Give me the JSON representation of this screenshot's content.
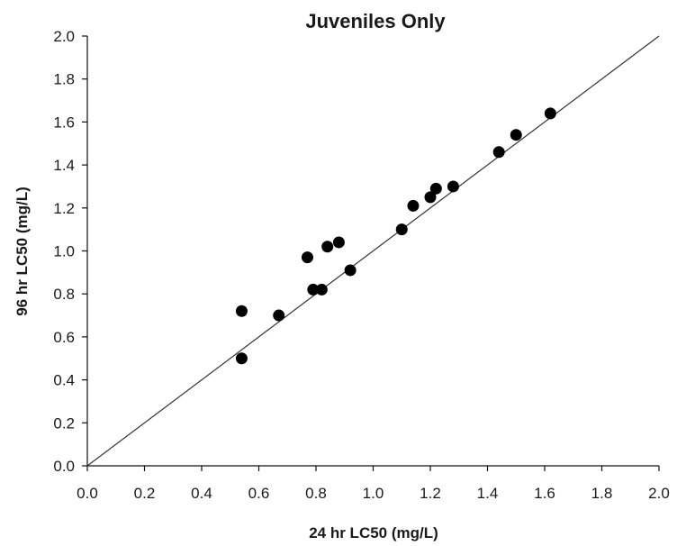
{
  "chart_data": {
    "type": "scatter",
    "title": "Juveniles Only",
    "xlabel": "24 hr LC50 (mg/L)",
    "ylabel": "96 hr LC50 (mg/L)",
    "xlim": [
      0.0,
      2.0
    ],
    "ylim": [
      0.0,
      2.0
    ],
    "xticks": [
      "0.0",
      "0.2",
      "0.4",
      "0.6",
      "0.8",
      "1.0",
      "1.2",
      "1.4",
      "1.6",
      "1.8",
      "2.0"
    ],
    "yticks": [
      "0.0",
      "0.2",
      "0.4",
      "0.6",
      "0.8",
      "1.0",
      "1.2",
      "1.4",
      "1.6",
      "1.8",
      "2.0"
    ],
    "reference_line": {
      "x": [
        0.0,
        2.0
      ],
      "y": [
        0.0,
        2.0
      ]
    },
    "grid": false,
    "legend": "none",
    "point_color": "#000000",
    "points": [
      {
        "x": 0.54,
        "y": 0.72
      },
      {
        "x": 0.54,
        "y": 0.5
      },
      {
        "x": 0.67,
        "y": 0.7
      },
      {
        "x": 0.77,
        "y": 0.97
      },
      {
        "x": 0.79,
        "y": 0.82
      },
      {
        "x": 0.82,
        "y": 0.82
      },
      {
        "x": 0.84,
        "y": 1.02
      },
      {
        "x": 0.88,
        "y": 1.04
      },
      {
        "x": 0.92,
        "y": 0.91
      },
      {
        "x": 1.1,
        "y": 1.1
      },
      {
        "x": 1.14,
        "y": 1.21
      },
      {
        "x": 1.2,
        "y": 1.25
      },
      {
        "x": 1.22,
        "y": 1.29
      },
      {
        "x": 1.28,
        "y": 1.3
      },
      {
        "x": 1.44,
        "y": 1.46
      },
      {
        "x": 1.5,
        "y": 1.54
      },
      {
        "x": 1.62,
        "y": 1.64
      }
    ]
  }
}
